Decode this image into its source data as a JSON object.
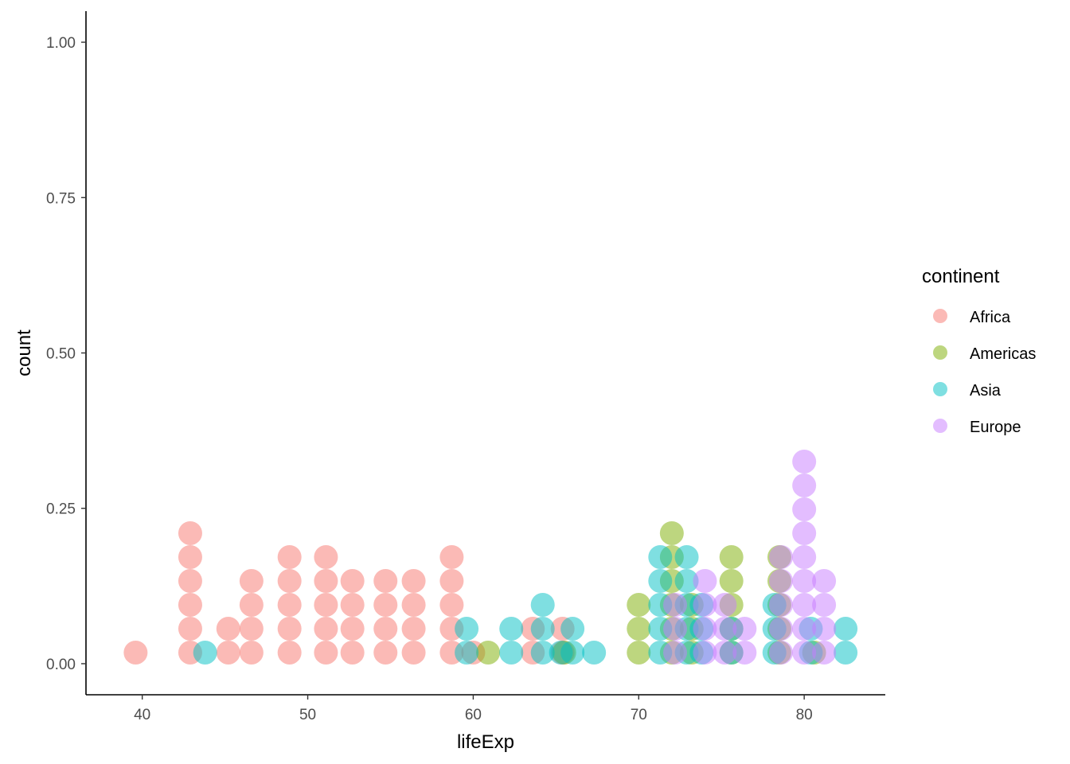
{
  "chart_data": {
    "type": "dotplot",
    "xlabel": "lifeExp",
    "ylabel": "count",
    "xlim": [
      36.6,
      84.9
    ],
    "ylim": [
      -0.05,
      1.05
    ],
    "xticks": [
      40,
      50,
      60,
      70,
      80
    ],
    "xtick_labels": [
      "40",
      "50",
      "60",
      "70",
      "80"
    ],
    "yticks": [
      0,
      0.25,
      0.5,
      0.75,
      1.0
    ],
    "ytick_labels": [
      "0.00",
      "0.25",
      "0.50",
      "0.75",
      "1.00"
    ],
    "grid": false,
    "legend": {
      "title": "continent",
      "position": "right",
      "entries": [
        "Africa",
        "Americas",
        "Asia",
        "Europe"
      ]
    },
    "series": [
      {
        "name": "Africa",
        "color": "#F8766D",
        "stacks": [
          {
            "x": 39.6,
            "count": 1
          },
          {
            "x": 42.9,
            "count": 6
          },
          {
            "x": 45.2,
            "count": 2
          },
          {
            "x": 46.6,
            "count": 4
          },
          {
            "x": 48.9,
            "count": 5
          },
          {
            "x": 51.1,
            "count": 5
          },
          {
            "x": 52.7,
            "count": 4
          },
          {
            "x": 54.7,
            "count": 4
          },
          {
            "x": 56.4,
            "count": 4
          },
          {
            "x": 58.7,
            "count": 5
          },
          {
            "x": 60.0,
            "count": 1
          },
          {
            "x": 63.6,
            "count": 2
          },
          {
            "x": 65.4,
            "count": 2
          }
        ]
      },
      {
        "name": "Americas",
        "color": "#7CAE00",
        "stacks": [
          {
            "x": 60.9,
            "count": 1
          },
          {
            "x": 65.5,
            "count": 1
          },
          {
            "x": 70.0,
            "count": 3
          },
          {
            "x": 72.0,
            "count": 6
          },
          {
            "x": 73.2,
            "count": 3
          },
          {
            "x": 75.6,
            "count": 5
          },
          {
            "x": 78.5,
            "count": 5
          },
          {
            "x": 80.6,
            "count": 1
          }
        ]
      },
      {
        "name": "Asia",
        "color": "#00BFC4",
        "stacks": [
          {
            "x": 43.8,
            "count": 1
          },
          {
            "x": 59.6,
            "count": 2
          },
          {
            "x": 62.3,
            "count": 2
          },
          {
            "x": 64.2,
            "count": 3
          },
          {
            "x": 65.3,
            "count": 1
          },
          {
            "x": 66.0,
            "count": 2
          },
          {
            "x": 67.3,
            "count": 1
          },
          {
            "x": 71.3,
            "count": 5
          },
          {
            "x": 72.9,
            "count": 5
          },
          {
            "x": 73.8,
            "count": 3
          },
          {
            "x": 75.6,
            "count": 2
          },
          {
            "x": 78.2,
            "count": 3
          },
          {
            "x": 80.4,
            "count": 2
          },
          {
            "x": 82.5,
            "count": 2
          }
        ]
      },
      {
        "name": "Europe",
        "color": "#C77CFF",
        "stacks": [
          {
            "x": 72.2,
            "count": 3
          },
          {
            "x": 74.0,
            "count": 4
          },
          {
            "x": 75.2,
            "count": 3
          },
          {
            "x": 76.4,
            "count": 2
          },
          {
            "x": 78.6,
            "count": 5
          },
          {
            "x": 80.0,
            "count": 9
          },
          {
            "x": 81.2,
            "count": 4
          }
        ]
      }
    ]
  }
}
